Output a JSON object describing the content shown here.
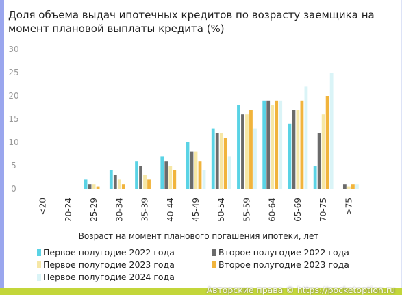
{
  "title": "Доля объема выдач ипотечных кредитов по возрасту заемщика на момент плановой выплаты кредита (%)",
  "watermark": "Авторские права © https://pocketoption.ru",
  "chart_data": {
    "type": "bar",
    "title": "Доля объема выдач ипотечных кредитов по возрасту заемщика на момент плановой выплаты кредита (%)",
    "xlabel": "Возраст на момент планового погашения ипотеки, лет",
    "ylabel": "",
    "ylim": [
      0,
      30
    ],
    "yticks": [
      0,
      5,
      10,
      15,
      20,
      25,
      30
    ],
    "grid": false,
    "legend_position": "bottom",
    "categories": [
      "<20",
      "20-24",
      "25-29",
      "30-34",
      "35-39",
      "40-44",
      "45-49",
      "50-54",
      "55-59",
      "60-64",
      "65-69",
      "70-75",
      ">75"
    ],
    "series": [
      {
        "name": "Первое полугодие 2022 года",
        "color": "#5ad3e5",
        "values": [
          0,
          0,
          2,
          4,
          6,
          7,
          10,
          13,
          18,
          19,
          14,
          5,
          0
        ]
      },
      {
        "name": "Второе полугодие 2022 года",
        "color": "#6b6b6b",
        "values": [
          0,
          0,
          1,
          3,
          5,
          6,
          8,
          12,
          16,
          19,
          17,
          12,
          1
        ]
      },
      {
        "name": "Первое полугодие 2023 года",
        "color": "#f6e7a6",
        "values": [
          0,
          0,
          1,
          2,
          3,
          5,
          8,
          12,
          16,
          18,
          17,
          16,
          0.5
        ]
      },
      {
        "name": "Второе полугодие 2023 года",
        "color": "#f1b43c",
        "values": [
          0,
          0,
          0.5,
          1,
          2,
          4,
          6,
          11,
          17,
          19,
          19,
          20,
          1
        ]
      },
      {
        "name": "Первое полугодие 2024 года",
        "color": "#daf4f7",
        "values": [
          0,
          0,
          0,
          0,
          0,
          0,
          4,
          7,
          13,
          19,
          22,
          25,
          1
        ]
      }
    ]
  }
}
